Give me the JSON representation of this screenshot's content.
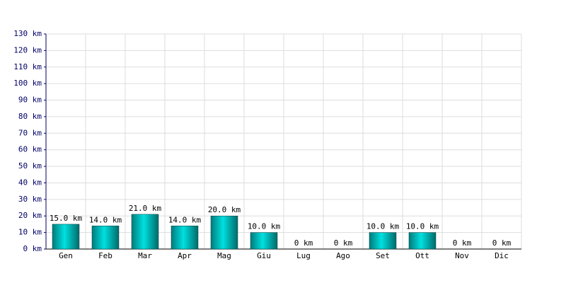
{
  "chart_data": {
    "type": "bar",
    "categories": [
      "Gen",
      "Feb",
      "Mar",
      "Apr",
      "Mag",
      "Giu",
      "Lug",
      "Ago",
      "Set",
      "Ott",
      "Nov",
      "Dic"
    ],
    "values": [
      15,
      14,
      21,
      14,
      20,
      10,
      0,
      0,
      10,
      10,
      0,
      0
    ],
    "value_labels": [
      "15.0 km",
      "14.0 km",
      "21.0 km",
      "14.0 km",
      "20.0 km",
      "10.0 km",
      "0 km",
      "0 km",
      "10.0 km",
      "10.0 km",
      "0 km",
      "0 km"
    ],
    "color": "#00e0e0",
    "ylim": [
      0,
      130
    ],
    "yticks": [
      {
        "value": 0,
        "label": "0 km"
      },
      {
        "value": 10,
        "label": "10 km"
      },
      {
        "value": 20,
        "label": "20 km"
      },
      {
        "value": 30,
        "label": "30 km"
      },
      {
        "value": 40,
        "label": "40 km"
      },
      {
        "value": 50,
        "label": "50 km"
      },
      {
        "value": 60,
        "label": "60 km"
      },
      {
        "value": 70,
        "label": "70 km"
      },
      {
        "value": 80,
        "label": "80 km"
      },
      {
        "value": 90,
        "label": "90 km"
      },
      {
        "value": 100,
        "label": "100 km"
      },
      {
        "value": 110,
        "label": "110 km"
      },
      {
        "value": 120,
        "label": "120 km"
      },
      {
        "value": 130,
        "label": "130 km"
      }
    ],
    "grid": true
  }
}
